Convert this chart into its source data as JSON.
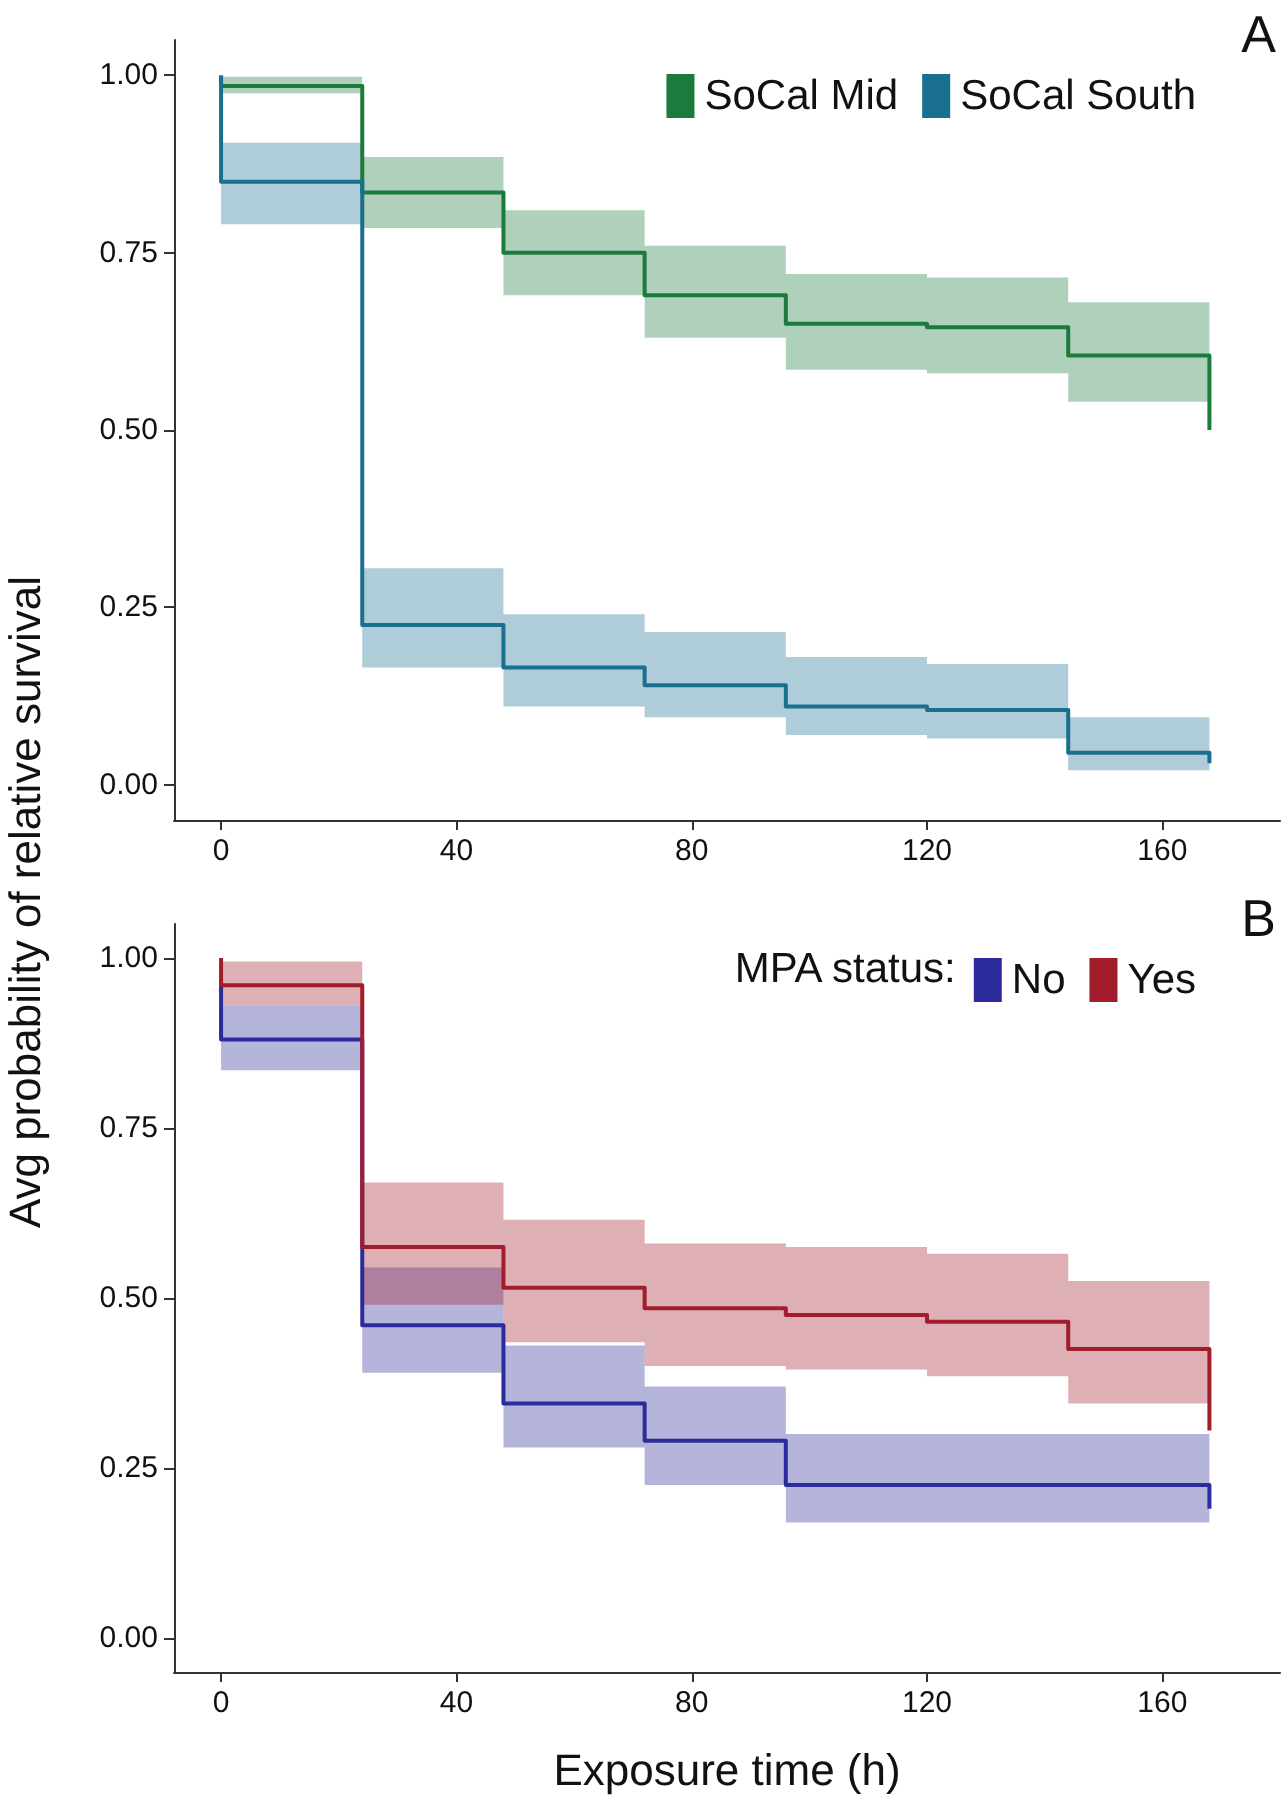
{
  "chart_data": [
    {
      "type": "step",
      "ylabel": "Avg probability of relative survival",
      "annotations": [
        "A"
      ],
      "xlim": [
        -8,
        180
      ],
      "xticks": [
        0,
        40,
        80,
        120,
        160
      ],
      "ylim": [
        -0.05,
        1.05
      ],
      "yticks": [
        {
          "value": 0,
          "label": "0.00"
        },
        {
          "value": 0.25,
          "label": "0.25"
        },
        {
          "value": 0.5,
          "label": "0.50"
        },
        {
          "value": 0.75,
          "label": "0.75"
        },
        {
          "value": 1,
          "label": "1.00"
        }
      ],
      "grid": false,
      "legend": "top right",
      "marker": "none",
      "line_style": "solid",
      "series": [
        {
          "name": "SoCal Mid",
          "color": "#1b7a3c",
          "x": [
            0,
            0,
            24,
            48,
            72,
            96,
            120,
            144,
            168
          ],
          "values": [
            1.0,
            0.985,
            0.835,
            0.75,
            0.69,
            0.65,
            0.645,
            0.605,
            0.5
          ],
          "lower": [
            null,
            0.975,
            0.785,
            0.69,
            0.63,
            0.585,
            0.58,
            0.54,
            0.54
          ],
          "upper": [
            null,
            0.998,
            0.885,
            0.81,
            0.76,
            0.72,
            0.715,
            0.68,
            0.68
          ]
        },
        {
          "name": "SoCal South",
          "color": "#1a6f8f",
          "x": [
            0,
            0,
            24,
            48,
            72,
            96,
            120,
            144,
            168
          ],
          "values": [
            1.0,
            0.85,
            0.225,
            0.165,
            0.14,
            0.11,
            0.105,
            0.045,
            0.03
          ],
          "lower": [
            null,
            0.79,
            0.165,
            0.11,
            0.095,
            0.07,
            0.065,
            0.02,
            0.02
          ],
          "upper": [
            null,
            0.905,
            0.305,
            0.24,
            0.215,
            0.18,
            0.17,
            0.095,
            0.095
          ]
        }
      ]
    },
    {
      "type": "step",
      "xlabel": "Exposure time (h)",
      "legend_title": "MPA status:",
      "annotations": [
        "B"
      ],
      "xlim": [
        -8,
        180
      ],
      "xticks": [
        0,
        40,
        80,
        120,
        160
      ],
      "ylim": [
        -0.05,
        1.05
      ],
      "yticks": [
        {
          "value": 0,
          "label": "0.00"
        },
        {
          "value": 0.25,
          "label": "0.25"
        },
        {
          "value": 0.5,
          "label": "0.50"
        },
        {
          "value": 0.75,
          "label": "0.75"
        },
        {
          "value": 1,
          "label": "1.00"
        }
      ],
      "grid": false,
      "legend": "top right",
      "marker": "none",
      "line_style": "solid",
      "series": [
        {
          "name": "No",
          "color": "#2b2b9c",
          "x": [
            0,
            0,
            24,
            48,
            72,
            96,
            168
          ],
          "values": [
            0.96,
            0.88,
            0.46,
            0.345,
            0.29,
            0.225,
            0.19
          ],
          "lower": [
            null,
            0.835,
            0.39,
            0.28,
            0.225,
            0.17,
            0.17
          ],
          "upper": [
            null,
            0.93,
            0.545,
            0.43,
            0.37,
            0.3,
            0.3
          ]
        },
        {
          "name": "Yes",
          "color": "#a11d2b",
          "x": [
            0,
            0,
            24,
            48,
            72,
            96,
            120,
            144,
            168
          ],
          "values": [
            1.0,
            0.96,
            0.575,
            0.515,
            0.485,
            0.475,
            0.465,
            0.425,
            0.305
          ],
          "lower": [
            null,
            0.93,
            0.49,
            0.435,
            0.4,
            0.395,
            0.385,
            0.345,
            0.345
          ],
          "upper": [
            null,
            0.995,
            0.67,
            0.615,
            0.58,
            0.575,
            0.565,
            0.525,
            0.525
          ]
        }
      ]
    }
  ]
}
